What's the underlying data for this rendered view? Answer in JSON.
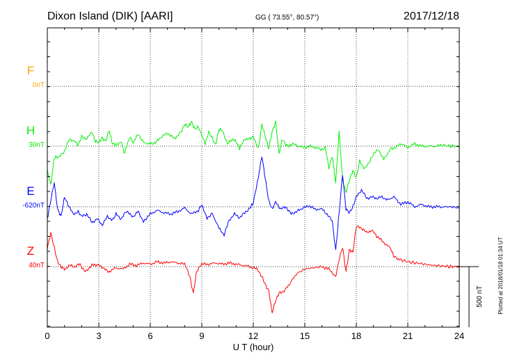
{
  "header": {
    "station": "Dixon Island (DIK)  [AARI]",
    "coords": "GG ( 73.55°,  80.57°)",
    "date": "2017/12/18"
  },
  "scale_bar_label": "500 nT",
  "plotted_note": "Plotted at 2018/01/18 01:34 UT",
  "chart_data": {
    "type": "line",
    "xlabel": "U T (hour)",
    "xlim": [
      0,
      24
    ],
    "x_ticks": [
      "0",
      "3",
      "6",
      "9",
      "12",
      "15",
      "18",
      "21",
      "24"
    ],
    "grid": true,
    "units": "nT",
    "scale_bar_nT": 500,
    "colors": {
      "F": "#ffa500",
      "H": "#00ee00",
      "E": "#0000ff",
      "Z": "#ff0000"
    },
    "components": [
      {
        "label": "F",
        "baseline": "0nT",
        "color": "#ffa500",
        "x": [],
        "y": []
      },
      {
        "label": "H",
        "baseline": "30nT",
        "color": "#00ee00",
        "x": [
          0,
          0.2,
          0.4,
          0.5,
          0.7,
          1.0,
          1.3,
          1.6,
          1.8,
          2.0,
          2.3,
          2.6,
          2.8,
          3.0,
          3.2,
          3.4,
          3.6,
          3.8,
          4.0,
          4.3,
          4.5,
          4.8,
          5.0,
          5.3,
          5.6,
          6.0,
          6.3,
          6.6,
          7.0,
          7.4,
          7.8,
          8.0,
          8.2,
          8.4,
          8.6,
          8.8,
          9.0,
          9.2,
          9.4,
          9.6,
          9.8,
          10.0,
          10.2,
          10.5,
          10.8,
          11.0,
          11.2,
          11.5,
          11.8,
          12.0,
          12.3,
          12.5,
          12.7,
          12.9,
          13.1,
          13.3,
          13.5,
          13.7,
          13.9,
          14.1,
          14.3,
          14.6,
          15.0,
          15.4,
          15.8,
          16.0,
          16.2,
          16.4,
          16.6,
          16.8,
          17.0,
          17.2,
          17.4,
          17.6,
          17.8,
          18.0,
          18.2,
          18.5,
          18.8,
          19.0,
          19.3,
          19.6,
          20.0,
          20.3,
          20.6,
          21.0,
          21.4,
          21.8,
          22.2,
          22.6,
          23.0,
          23.5,
          24.0
        ],
        "y": [
          -200,
          -320,
          -100,
          -90,
          -90,
          -40,
          60,
          40,
          10,
          80,
          60,
          120,
          40,
          30,
          70,
          40,
          130,
          20,
          10,
          40,
          -60,
          80,
          30,
          100,
          30,
          20,
          30,
          70,
          110,
          60,
          120,
          180,
          160,
          200,
          140,
          160,
          90,
          20,
          120,
          70,
          10,
          140,
          130,
          20,
          60,
          40,
          -20,
          60,
          60,
          80,
          -20,
          180,
          80,
          -20,
          120,
          200,
          -60,
          60,
          10,
          0,
          20,
          0,
          -10,
          0,
          -20,
          -30,
          -10,
          -180,
          -80,
          -300,
          120,
          -280,
          -380,
          -280,
          -200,
          -260,
          -120,
          -190,
          -120,
          -60,
          -30,
          -110,
          -20,
          -10,
          20,
          -10,
          20,
          0,
          0,
          0,
          10,
          0,
          0
        ]
      },
      {
        "label": "E",
        "baseline": "-620nT",
        "color": "#0000ff",
        "x": [
          0,
          0.2,
          0.4,
          0.6,
          0.8,
          1.0,
          1.2,
          1.5,
          1.8,
          2.0,
          2.3,
          2.6,
          2.9,
          3.2,
          3.5,
          3.8,
          4.0,
          4.3,
          4.6,
          5.0,
          5.3,
          5.6,
          6.0,
          6.4,
          6.8,
          7.2,
          7.6,
          8.0,
          8.4,
          8.8,
          9.0,
          9.3,
          9.6,
          10.0,
          10.3,
          10.6,
          10.9,
          11.2,
          11.5,
          11.8,
          12.0,
          12.3,
          12.5,
          12.7,
          12.9,
          13.1,
          13.3,
          13.6,
          13.9,
          14.2,
          14.5,
          14.8,
          15.2,
          15.6,
          16.0,
          16.3,
          16.6,
          16.8,
          17.0,
          17.2,
          17.4,
          17.6,
          17.8,
          18.0,
          18.3,
          18.6,
          18.9,
          19.2,
          19.5,
          19.8,
          20.2,
          20.6,
          21.0,
          21.4,
          21.8,
          22.2,
          22.6,
          23.0,
          23.5,
          24.0
        ],
        "y": [
          -100,
          50,
          200,
          -20,
          -80,
          80,
          20,
          -60,
          -40,
          -80,
          -60,
          -130,
          -100,
          -150,
          -80,
          -110,
          -60,
          -100,
          -40,
          -80,
          -40,
          -120,
          -60,
          -30,
          -50,
          -60,
          -40,
          -10,
          -60,
          -30,
          20,
          -100,
          -50,
          -180,
          -230,
          -110,
          -60,
          -90,
          -50,
          -10,
          30,
          250,
          420,
          230,
          50,
          -20,
          40,
          -20,
          0,
          -60,
          -40,
          -20,
          10,
          -20,
          -20,
          -60,
          -120,
          -360,
          -50,
          270,
          -20,
          -50,
          0,
          80,
          140,
          70,
          80,
          70,
          80,
          60,
          80,
          20,
          40,
          0,
          20,
          0,
          0,
          0,
          0,
          -10
        ]
      },
      {
        "label": "Z",
        "baseline": "40nT",
        "color": "#ff0000",
        "x": [
          0,
          0.2,
          0.4,
          0.6,
          0.8,
          1.0,
          1.3,
          1.6,
          1.9,
          2.2,
          2.6,
          3.0,
          3.3,
          3.6,
          4.0,
          4.4,
          4.8,
          5.2,
          5.6,
          6.0,
          6.4,
          6.8,
          7.2,
          7.6,
          8.0,
          8.3,
          8.5,
          8.7,
          9.0,
          9.4,
          9.8,
          10.2,
          10.6,
          11.0,
          11.4,
          11.8,
          12.2,
          12.5,
          12.7,
          12.9,
          13.1,
          13.3,
          13.5,
          13.8,
          14.1,
          14.5,
          15.0,
          15.5,
          16.0,
          16.4,
          16.8,
          17.0,
          17.2,
          17.4,
          17.6,
          17.8,
          18.0,
          18.3,
          18.6,
          18.9,
          19.2,
          19.6,
          20.0,
          20.2,
          20.5,
          21.0,
          21.5,
          22.0,
          22.5,
          23.0,
          23.5,
          24.0
        ],
        "y": [
          150,
          280,
          160,
          40,
          0,
          -20,
          10,
          0,
          20,
          -40,
          10,
          20,
          -20,
          -40,
          -10,
          -20,
          20,
          10,
          30,
          20,
          40,
          30,
          40,
          30,
          20,
          -80,
          -220,
          -40,
          20,
          20,
          30,
          20,
          30,
          20,
          10,
          0,
          -20,
          -80,
          -150,
          -200,
          -380,
          -280,
          -220,
          -200,
          -150,
          -60,
          -20,
          -10,
          0,
          -20,
          -80,
          60,
          160,
          -40,
          140,
          120,
          330,
          320,
          280,
          300,
          250,
          200,
          150,
          80,
          60,
          40,
          30,
          20,
          10,
          5,
          0,
          0
        ]
      }
    ]
  }
}
